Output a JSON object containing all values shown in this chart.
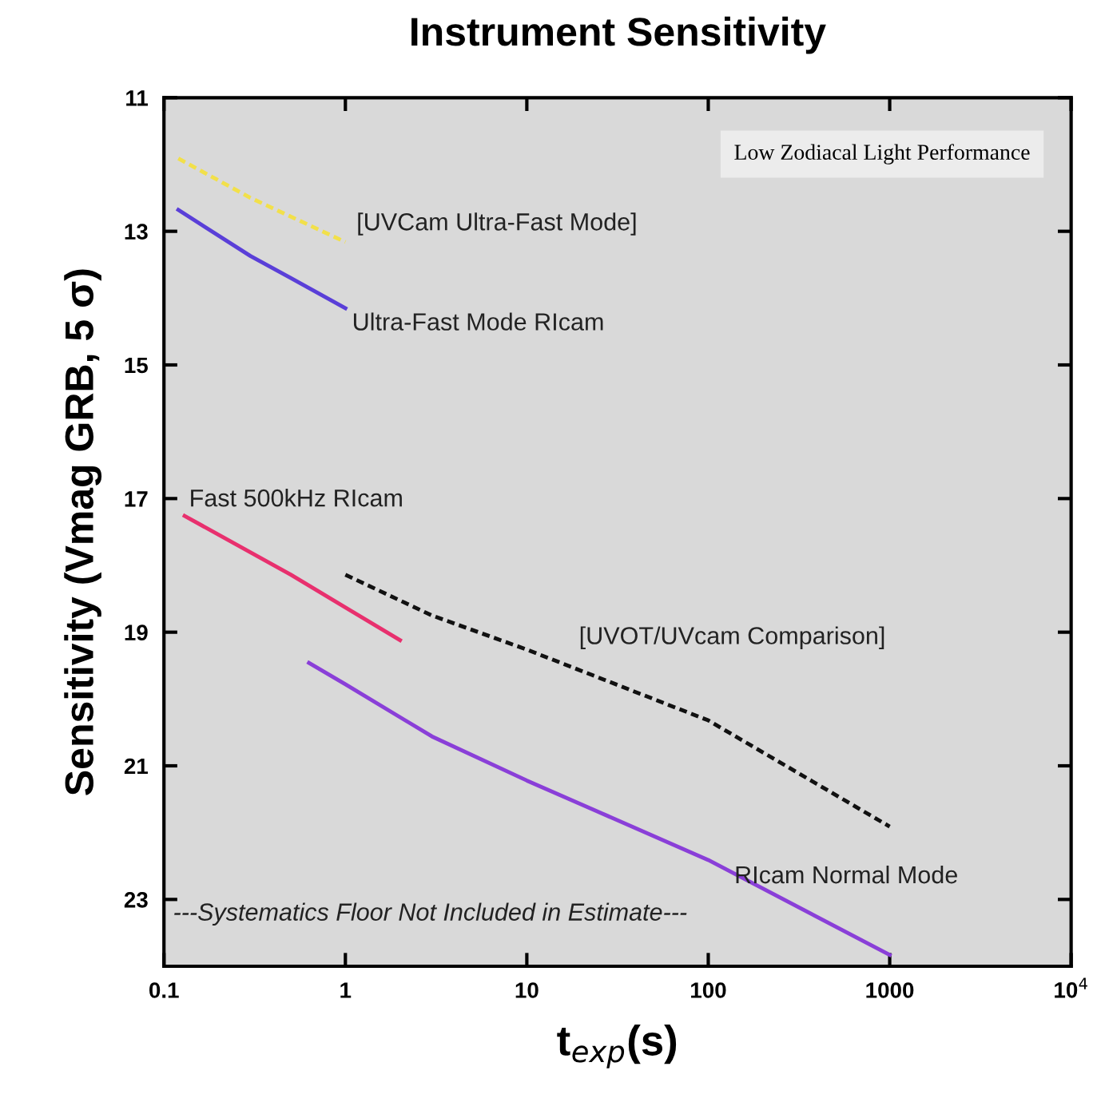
{
  "chart_data": {
    "type": "line",
    "title": "Instrument Sensitivity",
    "xlabel": "t$_{exp}$(s)",
    "ylabel": "Sensitivity (Vmag GRB, 5 σ)",
    "log": "x",
    "xlim": [
      0.1,
      10000
    ],
    "xticks": [
      0.1,
      1,
      10,
      100,
      1000,
      {
        "value": 10000,
        "label": "10$^{4}$"
      }
    ],
    "ylim": [
      24,
      11
    ],
    "yticks": [
      11,
      13,
      15,
      17,
      19,
      21,
      23
    ],
    "grid": false,
    "legend": false,
    "marker": "none",
    "series": [
      {
        "name": "[UVCam Ultra-Fast Mode]",
        "color": "#f2e04a",
        "line_style": "dashed",
        "x": [
          0.12,
          0.3,
          1
        ],
        "values": [
          11.91,
          12.5,
          13.16
        ]
      },
      {
        "name": "Ultra-Fast Mode RIcam",
        "color": "#5a3fd8",
        "line_style": "solid",
        "x": [
          0.12,
          0.3,
          0.5,
          1
        ],
        "values": [
          12.68,
          13.37,
          13.7,
          14.15
        ]
      },
      {
        "name": "Fast 500kHz RIcam",
        "color": "#e8306e",
        "line_style": "solid",
        "x": [
          0.13,
          0.5,
          2
        ],
        "values": [
          17.26,
          18.14,
          19.12
        ]
      },
      {
        "name": "[UVOT/UVcam Comparison]",
        "color": "#111111",
        "line_style": "dashed",
        "x": [
          1,
          3,
          10,
          100,
          1000
        ],
        "values": [
          18.14,
          18.75,
          19.26,
          20.32,
          21.91
        ]
      },
      {
        "name": "RIcam Normal Mode",
        "color": "#8a3fd8",
        "line_style": "solid",
        "x": [
          0.63,
          1,
          3,
          10,
          100,
          1000
        ],
        "values": [
          19.46,
          19.78,
          20.56,
          21.22,
          22.41,
          23.83
        ]
      }
    ],
    "annotations": [
      "Low Zodiacal Light Performance",
      "---Systematics Floor Not Included in Estimate---"
    ]
  }
}
